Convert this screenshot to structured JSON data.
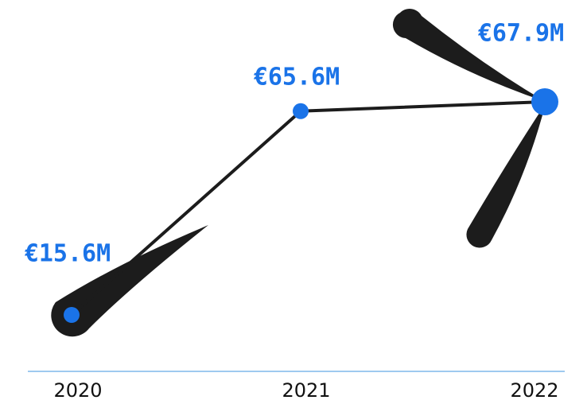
{
  "chart_data": {
    "type": "line",
    "categories": [
      "2020",
      "2021",
      "2022"
    ],
    "values": [
      15.6,
      65.6,
      67.9
    ],
    "value_labels": [
      "€15.6M",
      "€65.6M",
      "€67.9M"
    ],
    "color": "#1a73e8"
  }
}
